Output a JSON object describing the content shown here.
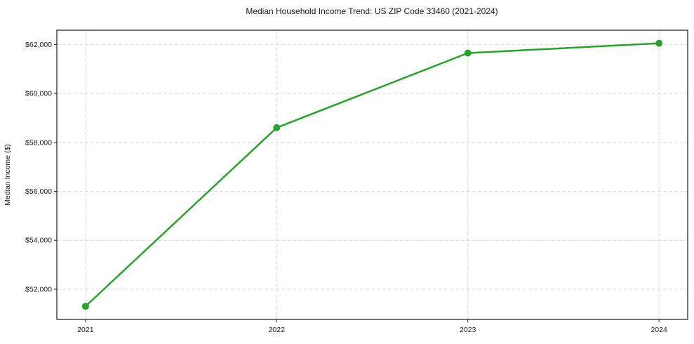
{
  "figure": {
    "background_color": "#ffffff",
    "spine_color": "#1a1a1a",
    "grid_color": "#d9d9d9",
    "text_color": "#1a1a1a"
  },
  "chart_data": {
    "type": "line",
    "title": "Median Household Income Trend: US ZIP Code 33460 (2021-2024)",
    "xlabel": "",
    "ylabel": "Median Income ($)",
    "x": [
      2021,
      2022,
      2023,
      2024
    ],
    "series": [
      {
        "name": "Median Household Income",
        "values": [
          51300,
          58600,
          61650,
          62050
        ],
        "color": "#2ca02c",
        "marker": "circle",
        "line_width": 2.5,
        "marker_radius": 5
      }
    ],
    "x_tick_labels": [
      "2021",
      "2022",
      "2023",
      "2024"
    ],
    "y_ticks": [
      52000,
      54000,
      56000,
      58000,
      60000,
      62000
    ],
    "y_tick_labels": [
      "$52,000",
      "$54,000",
      "$56,000",
      "$58,000",
      "$60,000",
      "$62,000"
    ],
    "xlim": [
      2020.85,
      2024.15
    ],
    "ylim": [
      50765,
      62585
    ],
    "grid": true,
    "grid_style": "dashed",
    "legend": "none"
  }
}
